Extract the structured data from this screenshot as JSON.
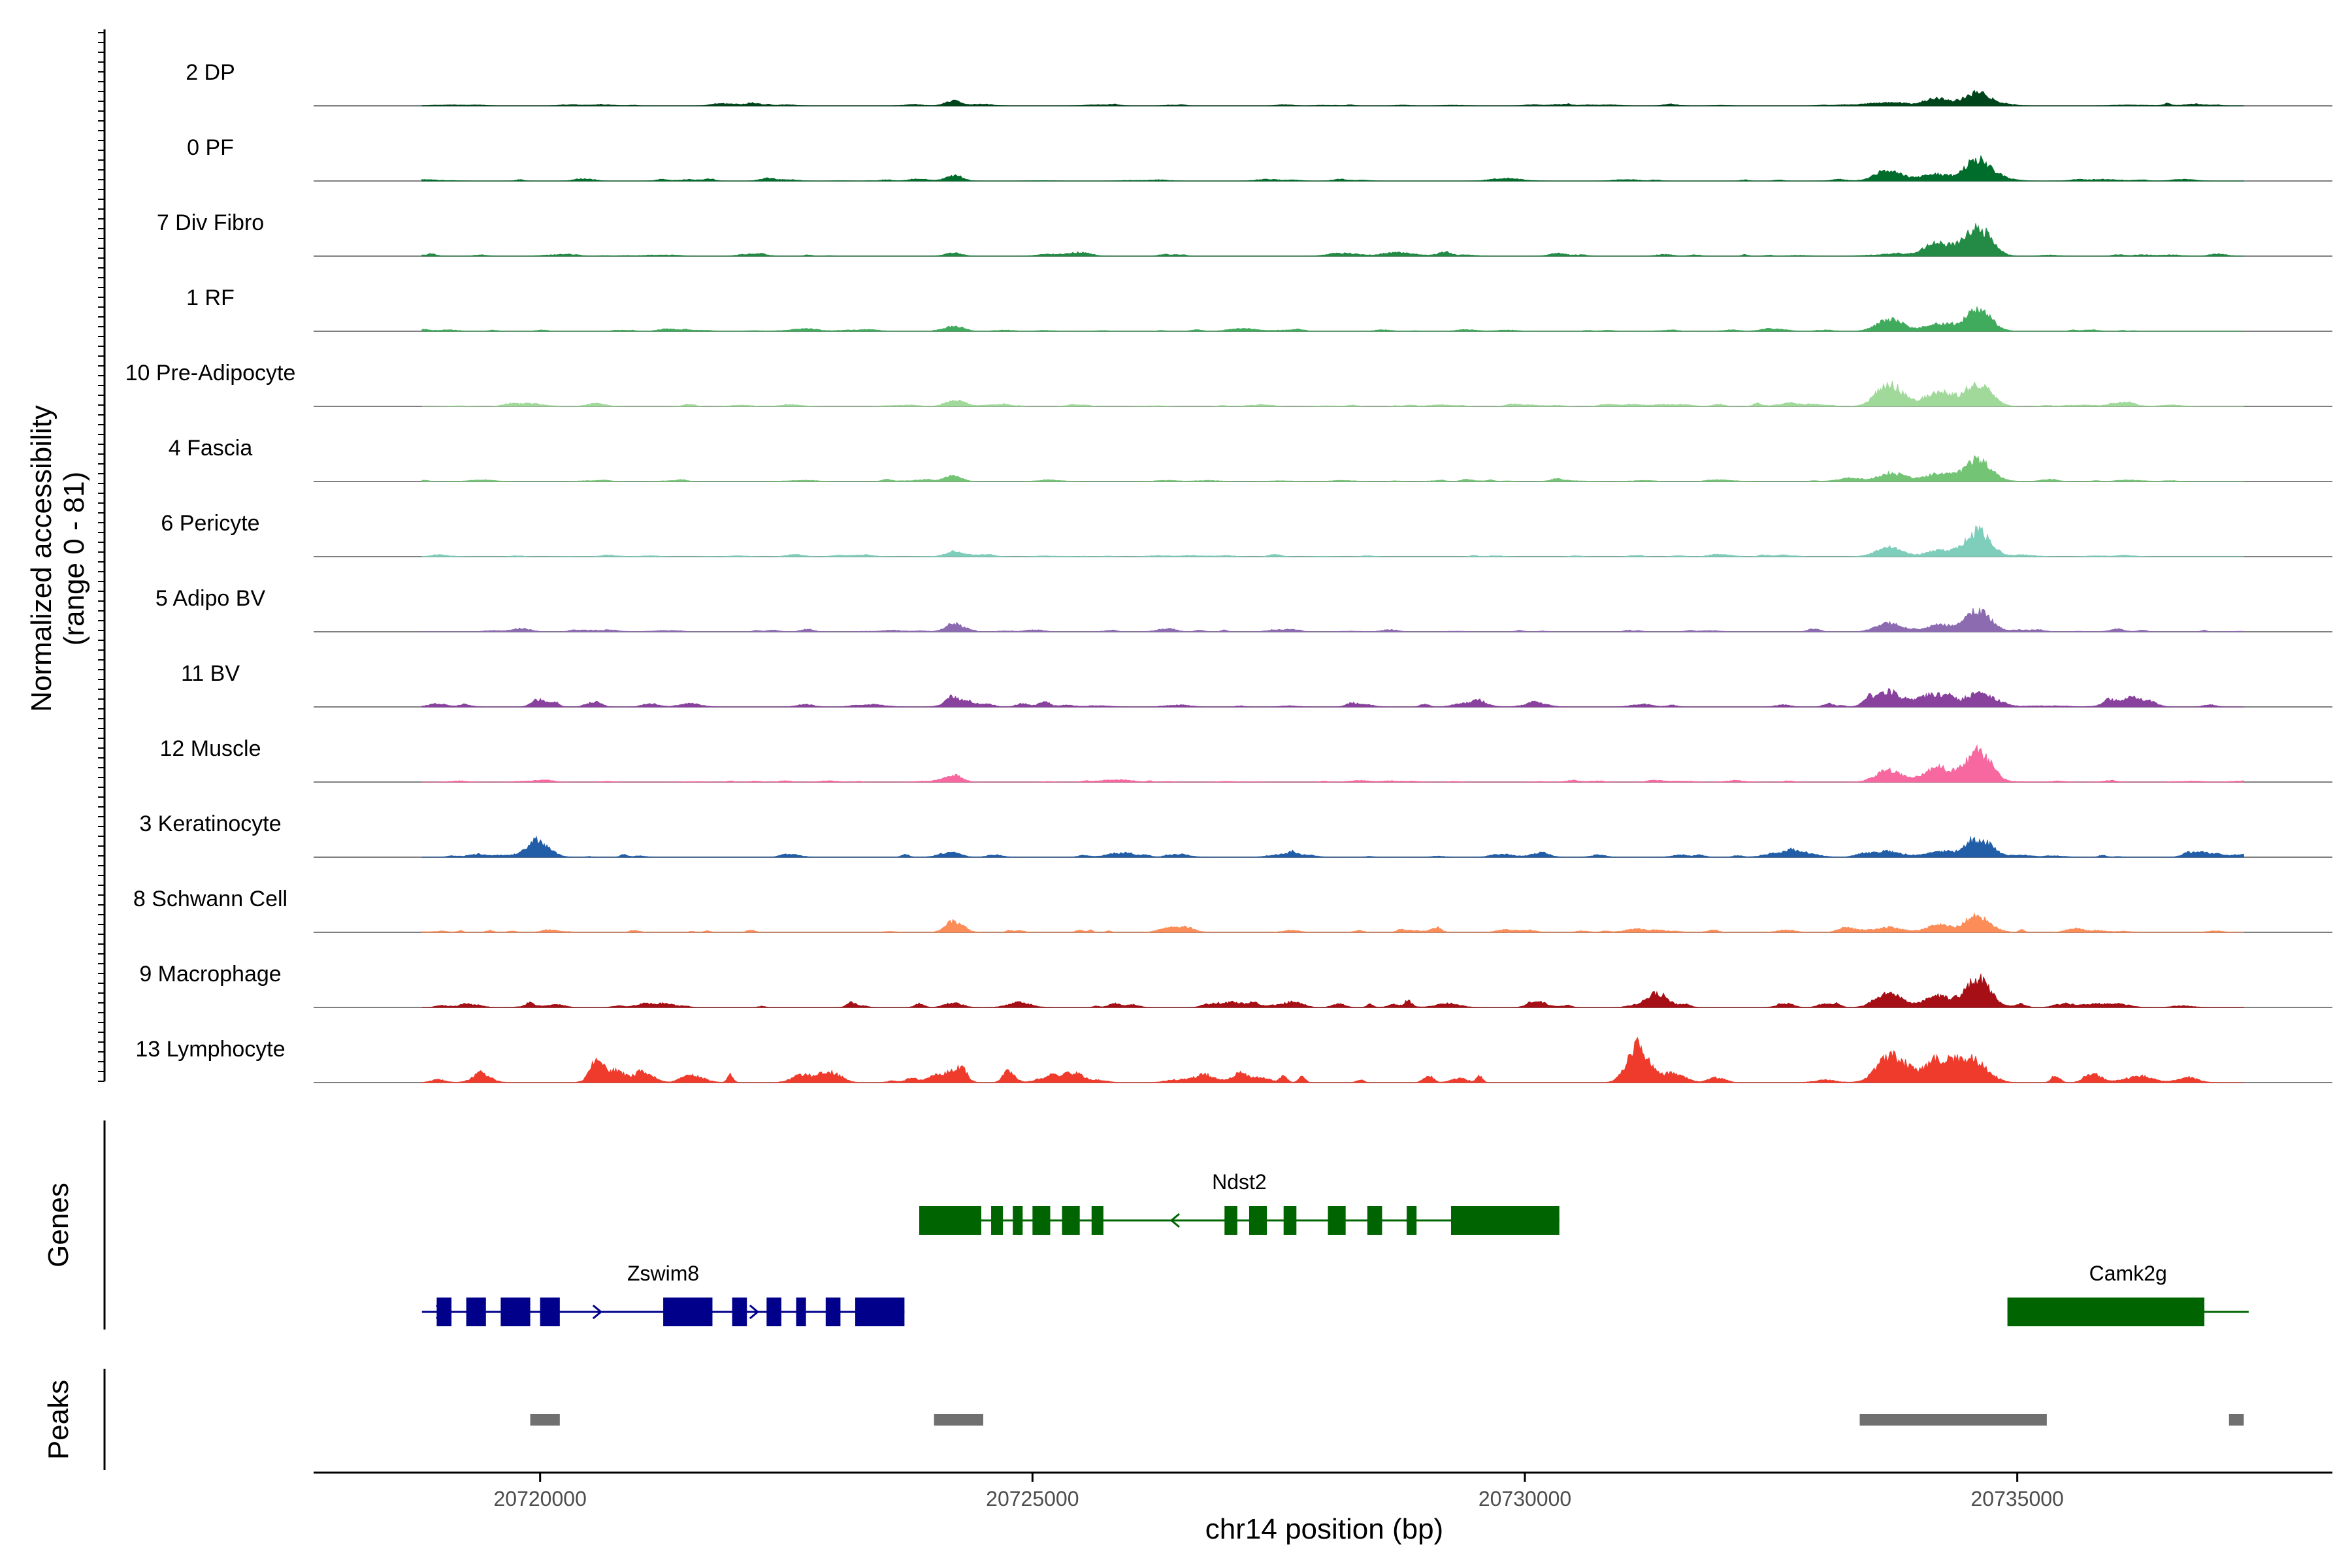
{
  "chart_data": {
    "type": "area",
    "chromosome": "chr14",
    "xlabel": "chr14 position (bp)",
    "ylabel_line1": "Normalized accessibility",
    "ylabel_line2": "(range 0 - 81)",
    "genes_label": "Genes",
    "peaks_label": "Peaks",
    "xlim": [
      20717700,
      20738200
    ],
    "x_ticks": [
      20720000,
      20725000,
      20730000,
      20735000
    ],
    "x_tick_labels": [
      "20720000",
      "20725000",
      "20730000",
      "20735000"
    ],
    "y_range": [
      0,
      81
    ],
    "peak_centers": [
      20724200,
      20733700,
      20734200,
      20734600
    ],
    "series": [
      {
        "name": "2 DP",
        "color": "#00441b",
        "values": [
          1.2,
          8,
          5,
          11,
          22
        ]
      },
      {
        "name": "0 PF",
        "color": "#006d2c",
        "values": [
          1.2,
          8,
          17,
          10,
          35
        ]
      },
      {
        "name": "7 Div Fibro",
        "color": "#238b45",
        "values": [
          1.5,
          5,
          3,
          20,
          46
        ]
      },
      {
        "name": "1 RF",
        "color": "#41ab5d",
        "values": [
          1.2,
          8,
          19,
          12,
          35
        ]
      },
      {
        "name": "10 Pre-Adipocyte",
        "color": "#a1d99b",
        "values": [
          2,
          10,
          38,
          25,
          38
        ]
      },
      {
        "name": "4 Fascia",
        "color": "#74c476",
        "values": [
          1.2,
          8,
          12,
          12,
          38
        ]
      },
      {
        "name": "6 Pericyte",
        "color": "#7fcdbb",
        "values": [
          1,
          7,
          15,
          11,
          42
        ]
      },
      {
        "name": "5 Adipo BV",
        "color": "#8c6bb1",
        "values": [
          1.5,
          12,
          12,
          10,
          35
        ]
      },
      {
        "name": "11 BV",
        "color": "#88419d",
        "values": [
          3.5,
          10,
          25,
          20,
          22
        ]
      },
      {
        "name": "12 Muscle",
        "color": "#f768a1",
        "values": [
          1,
          10,
          20,
          25,
          50
        ]
      },
      {
        "name": "3 Keratinocyte",
        "color": "#225ea8",
        "values": [
          2.5,
          6,
          8,
          8,
          28
        ]
      },
      {
        "name": "8 Schwann Cell",
        "color": "#fc8d59",
        "values": [
          2,
          16,
          8,
          10,
          25
        ]
      },
      {
        "name": "9 Macrophage",
        "color": "#a50f15",
        "values": [
          3.5,
          8,
          22,
          18,
          48
        ]
      },
      {
        "name": "13 Lymphocyte",
        "color": "#ef3b2c",
        "values": [
          7,
          18,
          45,
          25,
          28
        ]
      }
    ],
    "extra_peaks": [
      {
        "track": "3 Keratinocyte",
        "x": 20720000,
        "value": 22
      },
      {
        "track": "9 Macrophage",
        "x": 20731350,
        "value": 22
      },
      {
        "track": "13 Lymphocyte",
        "x": 20731150,
        "value": 62
      },
      {
        "track": "11 BV",
        "x": 20736200,
        "value": 10
      }
    ],
    "genes": [
      {
        "name": "Ndst2",
        "strand": "-",
        "start": 20723850,
        "end": 20730350,
        "color": "#006400",
        "exons": [
          [
            20723850,
            20724480
          ],
          [
            20724580,
            20724700
          ],
          [
            20724800,
            20724900
          ],
          [
            20725000,
            20725180
          ],
          [
            20725300,
            20725480
          ],
          [
            20725600,
            20725720
          ],
          [
            20726950,
            20727080
          ],
          [
            20727200,
            20727380
          ],
          [
            20727550,
            20727680
          ],
          [
            20728000,
            20728180
          ],
          [
            20728400,
            20728550
          ],
          [
            20728800,
            20728900
          ],
          [
            20729250,
            20730350
          ]
        ]
      },
      {
        "name": "Zswim8",
        "strand": "+",
        "start": 20718800,
        "end": 20723700,
        "color": "#00008b",
        "exons": [
          [
            20718950,
            20719100
          ],
          [
            20719250,
            20719450
          ],
          [
            20719600,
            20719900
          ],
          [
            20720000,
            20720200
          ],
          [
            20721250,
            20721750
          ],
          [
            20721950,
            20722100
          ],
          [
            20722300,
            20722450
          ],
          [
            20722600,
            20722700
          ],
          [
            20722900,
            20723050
          ],
          [
            20723200,
            20723700
          ]
        ]
      },
      {
        "name": "Camk2g",
        "strand": "-",
        "start": 20734900,
        "end": 20737350,
        "color": "#006400",
        "exons": [
          [
            20734900,
            20736900
          ]
        ]
      }
    ],
    "peaks": [
      [
        20719900,
        20720200
      ],
      [
        20724000,
        20724500
      ],
      [
        20733400,
        20735300
      ],
      [
        20737150,
        20737300
      ]
    ]
  }
}
